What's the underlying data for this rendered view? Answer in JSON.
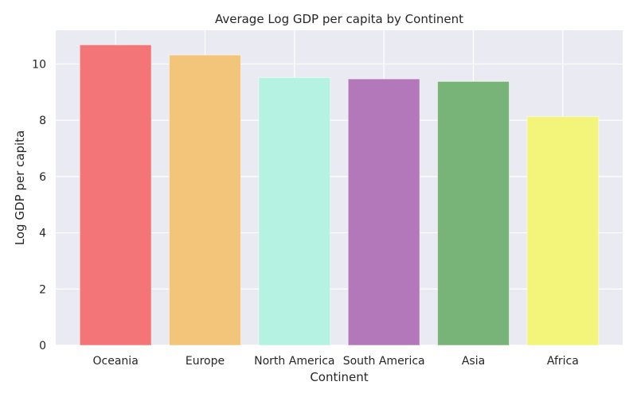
{
  "chart_data": {
    "type": "bar",
    "title": "Average Log GDP per capita by Continent",
    "xlabel": "Continent",
    "ylabel": "Log GDP per capita",
    "categories": [
      "Oceania",
      "Europe",
      "North America",
      "South America",
      "Asia",
      "Africa"
    ],
    "values": [
      10.68,
      10.32,
      9.52,
      9.47,
      9.38,
      8.13
    ],
    "colors": [
      "#f47577",
      "#f3c57a",
      "#b6f2e2",
      "#b278ba",
      "#78b378",
      "#f3f57a"
    ],
    "ylim": [
      0,
      11.2
    ],
    "yticks": [
      0,
      2,
      4,
      6,
      8,
      10
    ],
    "grid": true,
    "background": "#eaeaf2"
  }
}
